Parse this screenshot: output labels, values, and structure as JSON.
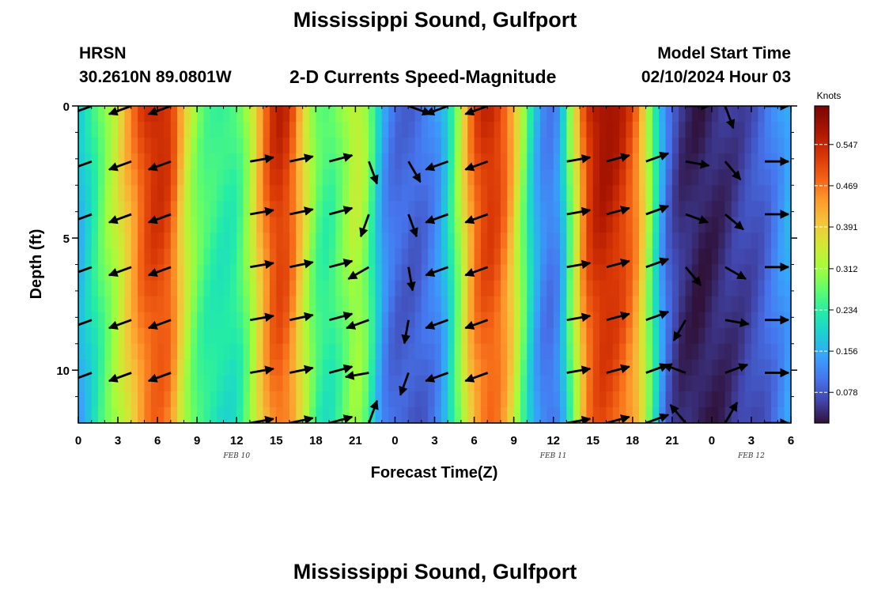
{
  "title": "Mississippi Sound, Gulfport",
  "title_repeat": "Mississippi Sound, Gulfport",
  "station": "HRSN",
  "coordinates": "30.2610N  89.0801W",
  "model_start_label": "Model Start Time",
  "model_start_value": "02/10/2024 Hour 03",
  "chart_data": {
    "type": "heatmap",
    "title": "2-D Currents Speed-Magnitude",
    "xlabel": "Forecast Time(Z)",
    "ylabel": "Depth (ft)",
    "x_unit": "hours since 02/10/2024 00Z",
    "xlim": [
      0,
      54
    ],
    "ylim": [
      12,
      0
    ],
    "x_ticks": [
      {
        "v": 0,
        "label": "0"
      },
      {
        "v": 3,
        "label": "3"
      },
      {
        "v": 6,
        "label": "6"
      },
      {
        "v": 9,
        "label": "9"
      },
      {
        "v": 12,
        "label": "12"
      },
      {
        "v": 15,
        "label": "15"
      },
      {
        "v": 18,
        "label": "18"
      },
      {
        "v": 21,
        "label": "21"
      },
      {
        "v": 24,
        "label": "0"
      },
      {
        "v": 27,
        "label": "3"
      },
      {
        "v": 30,
        "label": "6"
      },
      {
        "v": 33,
        "label": "9"
      },
      {
        "v": 36,
        "label": "12"
      },
      {
        "v": 39,
        "label": "15"
      },
      {
        "v": 42,
        "label": "18"
      },
      {
        "v": 45,
        "label": "21"
      },
      {
        "v": 48,
        "label": "0"
      },
      {
        "v": 51,
        "label": "3"
      },
      {
        "v": 54,
        "label": "6"
      }
    ],
    "date_labels": [
      {
        "v": 12,
        "label": "FEB 10"
      },
      {
        "v": 36,
        "label": "FEB 11"
      },
      {
        "v": 51,
        "label": "FEB 12"
      }
    ],
    "y_ticks": [
      {
        "v": 0,
        "label": "0"
      },
      {
        "v": 5,
        "label": "5"
      },
      {
        "v": 10,
        "label": "10"
      }
    ],
    "colorbar": {
      "label": "Knots",
      "min": 0.02,
      "max": 0.62,
      "ticks": [
        0.078,
        0.156,
        0.234,
        0.312,
        0.391,
        0.469,
        0.547
      ],
      "tick_labels": [
        "0.078",
        "0.156",
        "0.234",
        "0.312",
        "0.391",
        "0.469",
        "0.547"
      ]
    },
    "speed_keyframes": [
      {
        "t": 0,
        "s": 0.17
      },
      {
        "t": 1,
        "s": 0.23
      },
      {
        "t": 2,
        "s": 0.3
      },
      {
        "t": 3,
        "s": 0.37
      },
      {
        "t": 4,
        "s": 0.45
      },
      {
        "t": 5,
        "s": 0.53
      },
      {
        "t": 6,
        "s": 0.56
      },
      {
        "t": 7,
        "s": 0.53
      },
      {
        "t": 7.8,
        "s": 0.42
      },
      {
        "t": 8.5,
        "s": 0.33
      },
      {
        "t": 9.5,
        "s": 0.27
      },
      {
        "t": 11,
        "s": 0.24
      },
      {
        "t": 12,
        "s": 0.25
      },
      {
        "t": 13,
        "s": 0.33
      },
      {
        "t": 14,
        "s": 0.47
      },
      {
        "t": 15,
        "s": 0.56
      },
      {
        "t": 16,
        "s": 0.53
      },
      {
        "t": 17,
        "s": 0.4
      },
      {
        "t": 18,
        "s": 0.28
      },
      {
        "t": 19,
        "s": 0.25
      },
      {
        "t": 20,
        "s": 0.3
      },
      {
        "t": 21,
        "s": 0.36
      },
      {
        "t": 22,
        "s": 0.3
      },
      {
        "t": 22.6,
        "s": 0.2
      },
      {
        "t": 23.3,
        "s": 0.13
      },
      {
        "t": 24,
        "s": 0.1
      },
      {
        "t": 25.5,
        "s": 0.09
      },
      {
        "t": 26.5,
        "s": 0.11
      },
      {
        "t": 27.5,
        "s": 0.15
      },
      {
        "t": 28.5,
        "s": 0.27
      },
      {
        "t": 29.5,
        "s": 0.44
      },
      {
        "t": 30.5,
        "s": 0.54
      },
      {
        "t": 31.5,
        "s": 0.55
      },
      {
        "t": 32.5,
        "s": 0.48
      },
      {
        "t": 33.5,
        "s": 0.34
      },
      {
        "t": 34.5,
        "s": 0.18
      },
      {
        "t": 35.5,
        "s": 0.11
      },
      {
        "t": 36.5,
        "s": 0.14
      },
      {
        "t": 37.5,
        "s": 0.34
      },
      {
        "t": 38.5,
        "s": 0.53
      },
      {
        "t": 39.5,
        "s": 0.59
      },
      {
        "t": 40.5,
        "s": 0.58
      },
      {
        "t": 41.5,
        "s": 0.54
      },
      {
        "t": 42.5,
        "s": 0.46
      },
      {
        "t": 43.5,
        "s": 0.27
      },
      {
        "t": 44.5,
        "s": 0.11
      },
      {
        "t": 45.5,
        "s": 0.05
      },
      {
        "t": 47,
        "s": 0.03
      },
      {
        "t": 48.5,
        "s": 0.04
      },
      {
        "t": 50,
        "s": 0.06
      },
      {
        "t": 51.5,
        "s": 0.08
      },
      {
        "t": 52.5,
        "s": 0.11
      },
      {
        "t": 53.5,
        "s": 0.15
      },
      {
        "t": 54,
        "s": 0.17
      }
    ],
    "vector_times": [
      1.5,
      4.5,
      7.5,
      13.5,
      16.5,
      19.5,
      22.5,
      25.5,
      28.5,
      31.5,
      37.5,
      40.5,
      43.5,
      46.5,
      49.5,
      52.5
    ],
    "vector_depths": [
      0,
      2.1,
      4.1,
      6.1,
      8.1,
      10.1,
      12
    ],
    "vector_direction_deg": [
      250,
      250,
      250,
      80,
      78,
      75,
      75,
      150,
      250,
      250,
      80,
      75,
      70,
      150,
      110,
      90
    ],
    "vector_direction_by_depth": {
      "times": [
        22.5,
        25.5,
        46.5,
        49.5
      ],
      "directions": [
        [
          20,
          160,
          200,
          240,
          250,
          260,
          20
        ],
        [
          110,
          150,
          160,
          170,
          190,
          200,
          210
        ],
        [
          90,
          100,
          110,
          140,
          210,
          290,
          320
        ],
        [
          160,
          140,
          130,
          120,
          100,
          70,
          30
        ]
      ]
    }
  }
}
